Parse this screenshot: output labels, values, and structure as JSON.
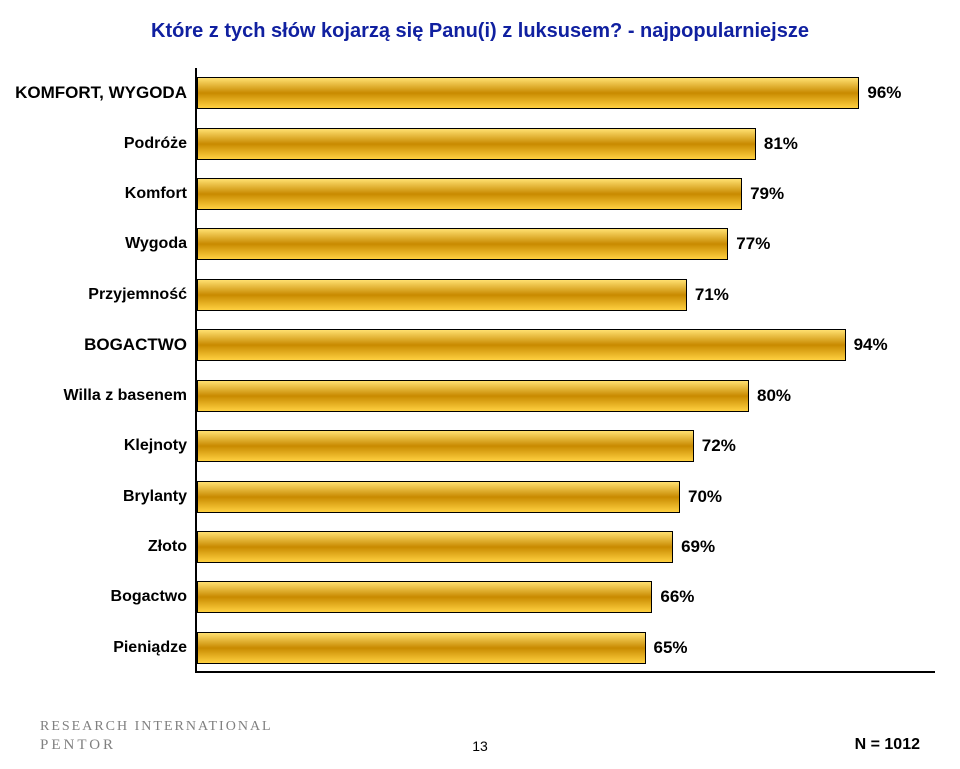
{
  "title": "Które z tych słów kojarzą się Panu(i) z luksusem? - najpopularniejsze",
  "title_color": "#1020a0",
  "title_fontsize": 20,
  "chart": {
    "type": "bar-horizontal",
    "max_value": 100,
    "bar_area_width": 690,
    "bar_gradient_top": "#ffe070",
    "bar_gradient_mid": "#c88a00",
    "bar_gradient_bot": "#ffd040",
    "border_color": "#000000",
    "background_color": "#ffffff",
    "label_fontsize_bold": 17,
    "label_fontsize_normal": 16,
    "value_fontsize": 17,
    "rows": [
      {
        "label": "KOMFORT, WYGODA",
        "value": 96,
        "bold": true
      },
      {
        "label": "Podróże",
        "value": 81,
        "bold": false
      },
      {
        "label": "Komfort",
        "value": 79,
        "bold": false
      },
      {
        "label": "Wygoda",
        "value": 77,
        "bold": false
      },
      {
        "label": "Przyjemność",
        "value": 71,
        "bold": false
      },
      {
        "label": "BOGACTWO",
        "value": 94,
        "bold": true
      },
      {
        "label": "Willa z basenem",
        "value": 80,
        "bold": false
      },
      {
        "label": "Klejnoty",
        "value": 72,
        "bold": false
      },
      {
        "label": "Brylanty",
        "value": 70,
        "bold": false
      },
      {
        "label": "Złoto",
        "value": 69,
        "bold": false
      },
      {
        "label": "Bogactwo",
        "value": 66,
        "bold": false
      },
      {
        "label": "Pieniądze",
        "value": 65,
        "bold": false
      }
    ]
  },
  "footer": {
    "logo_line1": "RESEARCH INTERNATIONAL",
    "logo_line2": "PENTOR",
    "page_number": "13",
    "sample_label": "N = 1012"
  }
}
